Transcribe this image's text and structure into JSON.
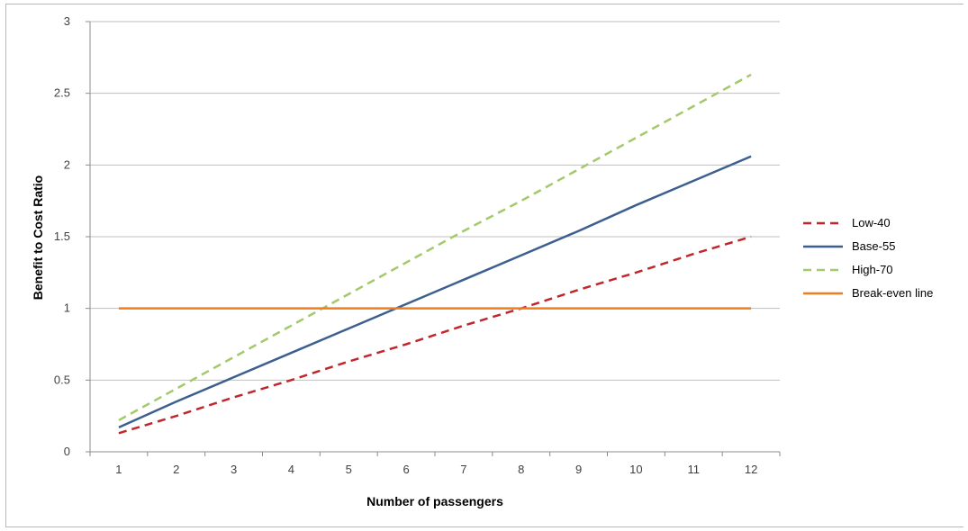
{
  "chart_data": {
    "type": "line",
    "title": "",
    "xlabel": "Number of passengers",
    "ylabel": "Benefit to Cost Ratio",
    "x": [
      1,
      2,
      3,
      4,
      5,
      6,
      7,
      8,
      9,
      10,
      11,
      12
    ],
    "xlim": [
      0.5,
      12.5
    ],
    "ylim": [
      0,
      3
    ],
    "yticks": [
      "0",
      "0.5",
      "1",
      "1.5",
      "2",
      "2.5",
      "3"
    ],
    "xticks": [
      "1",
      "2",
      "3",
      "4",
      "5",
      "6",
      "7",
      "8",
      "9",
      "10",
      "11",
      "12"
    ],
    "grid": "horizontal",
    "legend_position": "right",
    "series": [
      {
        "name": "Low-40",
        "color": "#c0272d",
        "style": "dashed",
        "values": [
          0.13,
          0.25,
          0.38,
          0.5,
          0.63,
          0.75,
          0.88,
          1.0,
          1.13,
          1.25,
          1.38,
          1.5
        ]
      },
      {
        "name": "Base-55",
        "color": "#3d5f8f",
        "style": "solid",
        "values": [
          0.17,
          0.35,
          0.52,
          0.69,
          0.86,
          1.03,
          1.2,
          1.37,
          1.54,
          1.72,
          1.89,
          2.06
        ]
      },
      {
        "name": "High-70",
        "color": "#a4c96b",
        "style": "dashed",
        "values": [
          0.22,
          0.44,
          0.66,
          0.88,
          1.1,
          1.32,
          1.54,
          1.75,
          1.97,
          2.19,
          2.41,
          2.63
        ]
      },
      {
        "name": "Break-even line",
        "color": "#f07d1e",
        "style": "solid",
        "values": [
          1,
          1,
          1,
          1,
          1,
          1,
          1,
          1,
          1,
          1,
          1,
          1
        ]
      }
    ]
  }
}
